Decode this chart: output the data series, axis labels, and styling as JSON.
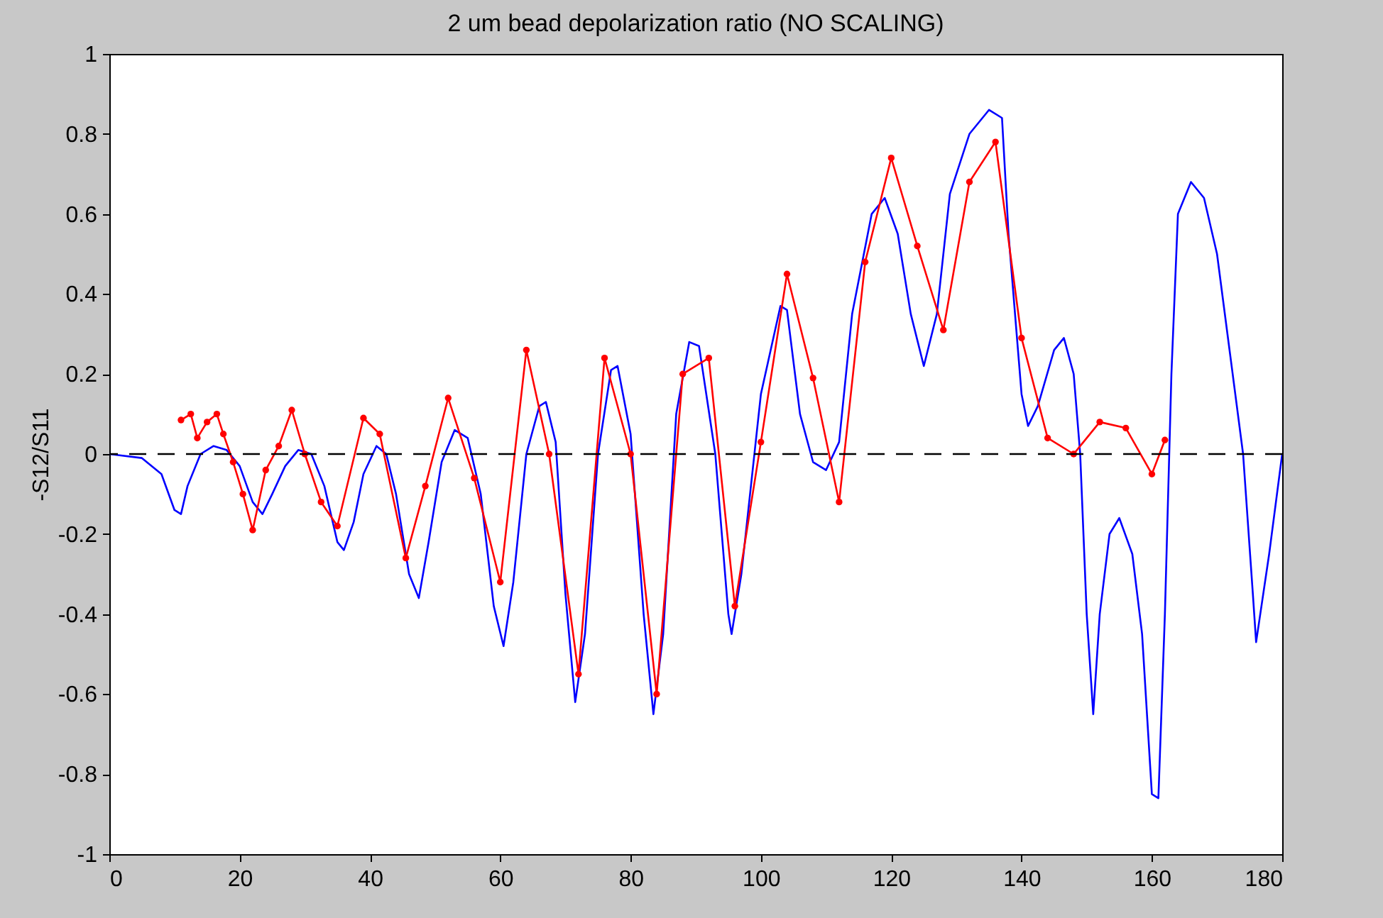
{
  "chart_data": {
    "type": "line",
    "title": "2 um bead depolarization ratio (NO SCALING)",
    "ylabel": "-S12/S11",
    "xlim": [
      0,
      180
    ],
    "ylim": [
      -1,
      1
    ],
    "xticks": [
      0,
      20,
      40,
      60,
      80,
      100,
      120,
      140,
      160,
      180
    ],
    "yticks": [
      -1,
      -0.8,
      -0.6,
      -0.4,
      -0.2,
      0,
      0.2,
      0.4,
      0.6,
      0.8,
      1
    ],
    "grid": false,
    "ref_lines": [
      {
        "axis": "y",
        "value": 0,
        "color": "#000000",
        "line_style": "dashed"
      }
    ],
    "series": [
      {
        "color": "#0000ff",
        "marker": "none",
        "x": [
          0,
          5,
          8,
          10,
          11,
          12,
          14,
          16,
          18,
          20,
          22,
          23.5,
          25,
          27,
          29,
          31,
          33,
          35,
          36,
          37.5,
          39,
          41,
          42.5,
          44,
          46,
          47.5,
          49,
          51,
          53,
          55,
          57,
          59,
          60.5,
          62,
          64,
          66,
          67,
          68.5,
          70,
          71.5,
          73,
          75,
          77,
          78,
          80,
          82,
          83.5,
          85,
          87,
          89,
          90.5,
          93,
          95,
          95.5,
          97,
          100,
          103,
          104,
          106,
          108,
          110,
          112,
          114,
          117,
          119,
          121,
          123,
          125,
          127,
          129,
          132,
          135,
          137,
          138,
          140,
          141,
          142.5,
          145,
          146.5,
          148,
          149,
          150,
          151,
          152,
          153.5,
          155,
          157,
          158.5,
          160,
          161,
          162,
          163,
          164,
          166,
          168,
          170,
          172,
          174,
          175.5,
          176,
          178,
          180
        ],
        "values": [
          0,
          -0.01,
          -0.05,
          -0.14,
          -0.15,
          -0.08,
          0,
          0.02,
          0.01,
          -0.03,
          -0.12,
          -0.15,
          -0.1,
          -0.03,
          0.01,
          0,
          -0.08,
          -0.22,
          -0.24,
          -0.17,
          -0.05,
          0.02,
          0,
          -0.1,
          -0.3,
          -0.36,
          -0.22,
          -0.02,
          0.06,
          0.04,
          -0.1,
          -0.38,
          -0.48,
          -0.32,
          0,
          0.12,
          0.13,
          0.03,
          -0.35,
          -0.62,
          -0.45,
          0,
          0.21,
          0.22,
          0.05,
          -0.4,
          -0.65,
          -0.45,
          0.1,
          0.28,
          0.27,
          0,
          -0.4,
          -0.45,
          -0.3,
          0.15,
          0.37,
          0.36,
          0.1,
          -0.02,
          -0.04,
          0.03,
          0.35,
          0.6,
          0.64,
          0.55,
          0.35,
          0.22,
          0.35,
          0.65,
          0.8,
          0.86,
          0.84,
          0.55,
          0.15,
          0.07,
          0.12,
          0.26,
          0.29,
          0.2,
          0,
          -0.4,
          -0.65,
          -0.4,
          -0.2,
          -0.16,
          -0.25,
          -0.45,
          -0.85,
          -0.86,
          -0.4,
          0.2,
          0.6,
          0.68,
          0.64,
          0.5,
          0.25,
          0,
          -0.35,
          -0.47,
          -0.25,
          0
        ]
      },
      {
        "color": "#ff0000",
        "marker": "circle",
        "x": [
          11,
          12.5,
          13.5,
          15,
          16.5,
          17.5,
          19,
          20.5,
          22,
          24,
          26,
          28,
          30,
          32.5,
          35,
          39,
          41.5,
          45.5,
          48.5,
          52,
          56,
          60,
          64,
          67.5,
          72,
          76,
          80,
          84,
          88,
          92,
          96,
          100,
          104,
          108,
          112,
          116,
          120,
          124,
          128,
          132,
          136,
          140,
          144,
          148,
          152,
          156,
          160,
          162
        ],
        "values": [
          0.085,
          0.1,
          0.04,
          0.08,
          0.1,
          0.05,
          -0.02,
          -0.1,
          -0.19,
          -0.04,
          0.02,
          0.11,
          0,
          -0.12,
          -0.18,
          0.09,
          0.05,
          -0.26,
          -0.08,
          0.14,
          -0.06,
          -0.32,
          0.26,
          0,
          -0.55,
          0.24,
          0,
          -0.6,
          0.2,
          0.24,
          -0.38,
          0.03,
          0.45,
          0.19,
          -0.12,
          0.48,
          0.74,
          0.52,
          0.31,
          0.68,
          0.78,
          0.29,
          0.04,
          0,
          0.08,
          0.065,
          -0.05,
          0.035
        ]
      }
    ]
  }
}
